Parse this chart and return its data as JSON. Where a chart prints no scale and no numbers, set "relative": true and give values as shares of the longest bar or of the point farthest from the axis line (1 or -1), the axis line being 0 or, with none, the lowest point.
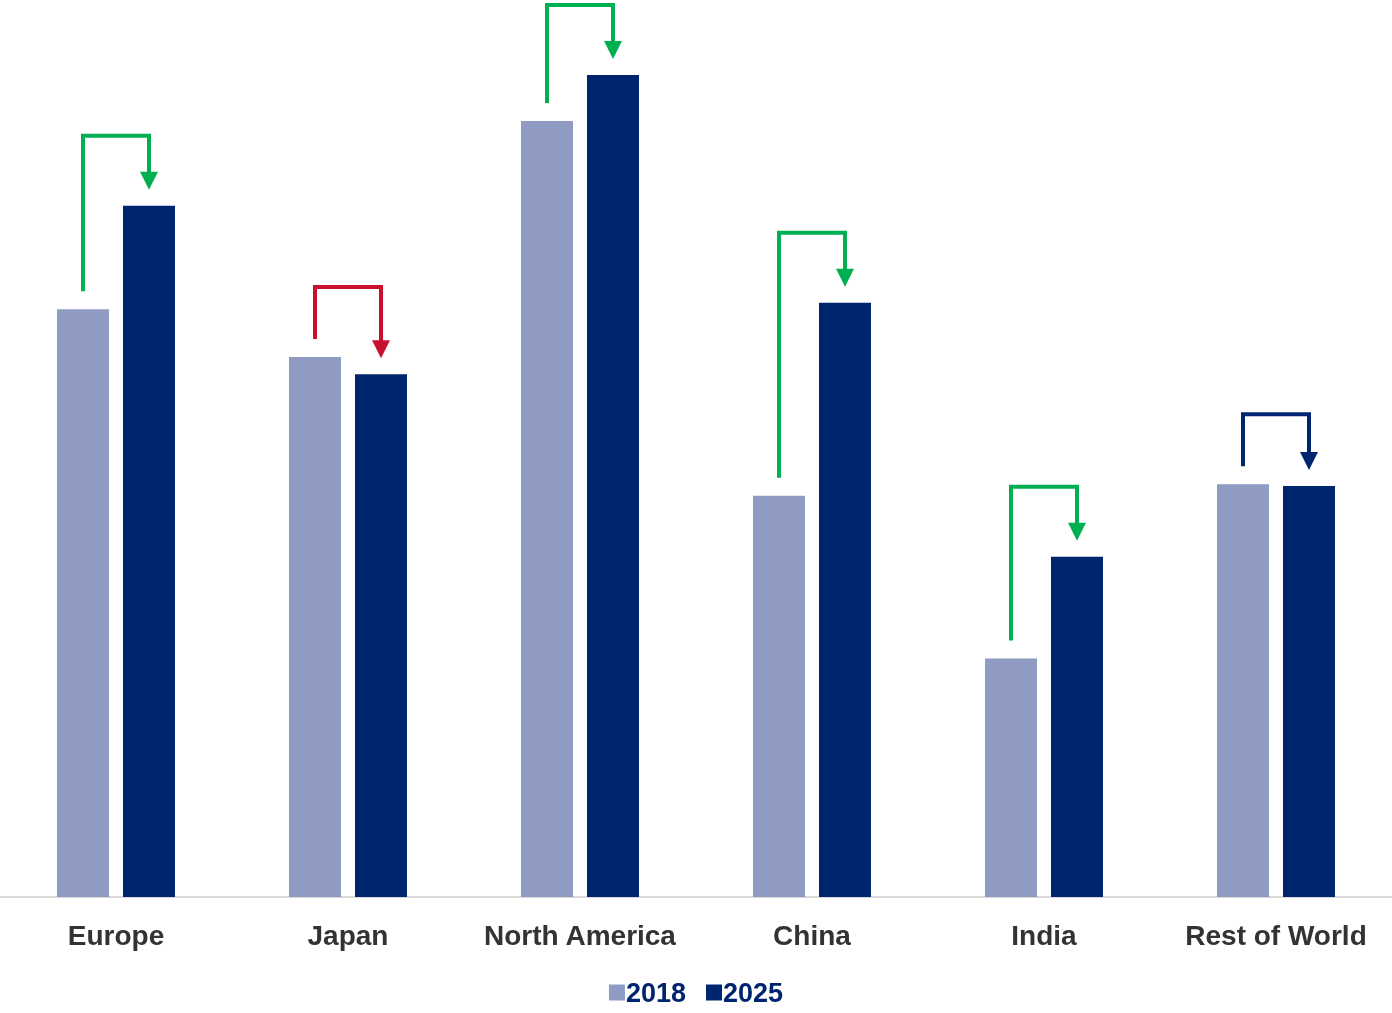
{
  "chart_data": {
    "type": "bar",
    "relative": true,
    "categories": [
      "Europe",
      "Japan",
      "North America",
      "China",
      "India",
      "Rest of World"
    ],
    "series": [
      {
        "name": "2018",
        "color": "#8f9bc3",
        "values": [
          0.715,
          0.657,
          0.944,
          0.488,
          0.29,
          0.502
        ]
      },
      {
        "name": "2025",
        "color": "#00256f",
        "values": [
          0.841,
          0.636,
          1,
          0.723,
          0.414,
          0.5
        ]
      }
    ],
    "legend": "bottom",
    "grid": false
  }
}
